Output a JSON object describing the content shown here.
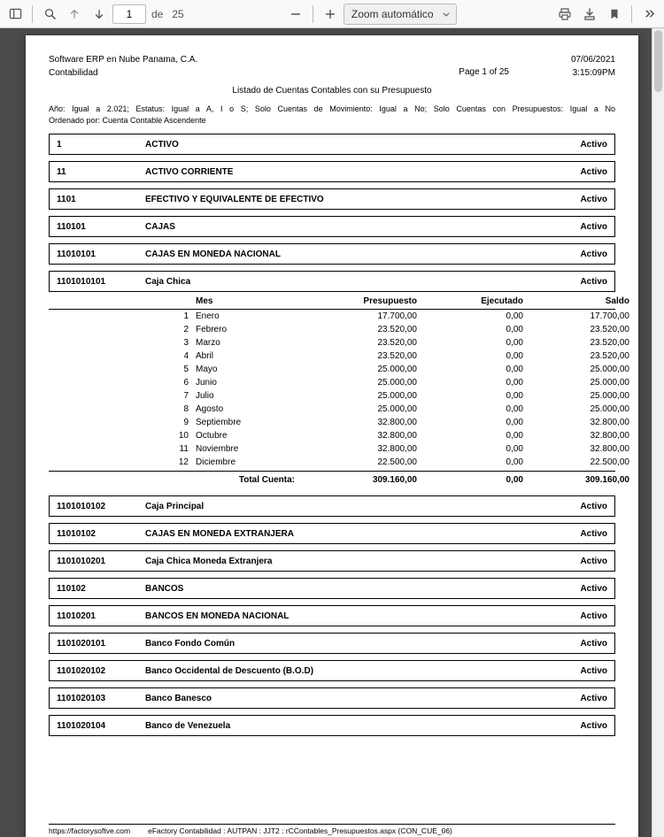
{
  "toolbar": {
    "page_current": "1",
    "page_sep": "de",
    "page_total": "25",
    "zoom_label": "Zoom automático"
  },
  "report": {
    "company": "Software ERP en Nube Panama, C.A.",
    "module": "Contabilidad",
    "date": "07/06/2021",
    "time": "3:15:09PM",
    "page_indicator": "Page 1 of 25",
    "title": "Listado de Cuentas Contables con su Presupuesto",
    "filters_line1": "Año: Igual a 2.021; Estatus: Igual a A, I o S; Solo Cuentas de Movimiento: Igual a No; Solo Cuentas con Presupuestos: Igual a No",
    "filters_line2": "Ordenado por: Cuenta Contable Ascendente",
    "status_label": "Activo",
    "columns": {
      "mes": "Mes",
      "presupuesto": "Presupuesto",
      "ejecutado": "Ejecutado",
      "saldo": "Saldo"
    },
    "total_label": "Total Cuenta:",
    "footer_url": "https://factorysoftve.com",
    "footer_info": "eFactory Contabilidad  :  AUTPAN  :  JJT2  :  rCContables_Presupuestos.aspx (CON_CUE_06)"
  },
  "accounts_top": [
    {
      "code": "1",
      "name": "ACTIVO"
    },
    {
      "code": "11",
      "name": "ACTIVO CORRIENTE"
    },
    {
      "code": "1101",
      "name": "EFECTIVO Y EQUIVALENTE DE EFECTIVO"
    },
    {
      "code": "110101",
      "name": "CAJAS"
    },
    {
      "code": "11010101",
      "name": "CAJAS EN MONEDA NACIONAL"
    },
    {
      "code": "1101010101",
      "name": "Caja Chica"
    }
  ],
  "budget_rows": [
    {
      "n": "1",
      "mes": "Enero",
      "p": "17.700,00",
      "e": "0,00",
      "s": "17.700,00"
    },
    {
      "n": "2",
      "mes": "Febrero",
      "p": "23.520,00",
      "e": "0,00",
      "s": "23.520,00"
    },
    {
      "n": "3",
      "mes": "Marzo",
      "p": "23.520,00",
      "e": "0,00",
      "s": "23.520,00"
    },
    {
      "n": "4",
      "mes": "Abril",
      "p": "23.520,00",
      "e": "0,00",
      "s": "23.520,00"
    },
    {
      "n": "5",
      "mes": "Mayo",
      "p": "25.000,00",
      "e": "0,00",
      "s": "25.000,00"
    },
    {
      "n": "6",
      "mes": "Junio",
      "p": "25.000,00",
      "e": "0,00",
      "s": "25.000,00"
    },
    {
      "n": "7",
      "mes": "Julio",
      "p": "25.000,00",
      "e": "0,00",
      "s": "25.000,00"
    },
    {
      "n": "8",
      "mes": "Agosto",
      "p": "25.000,00",
      "e": "0,00",
      "s": "25.000,00"
    },
    {
      "n": "9",
      "mes": "Septiembre",
      "p": "32.800,00",
      "e": "0,00",
      "s": "32.800,00"
    },
    {
      "n": "10",
      "mes": "Octubre",
      "p": "32.800,00",
      "e": "0,00",
      "s": "32.800,00"
    },
    {
      "n": "11",
      "mes": "Noviembre",
      "p": "32.800,00",
      "e": "0,00",
      "s": "32.800,00"
    },
    {
      "n": "12",
      "mes": "Diciembre",
      "p": "22.500,00",
      "e": "0,00",
      "s": "22.500,00"
    }
  ],
  "budget_total": {
    "p": "309.160,00",
    "e": "0,00",
    "s": "309.160,00"
  },
  "accounts_bottom": [
    {
      "code": "1101010102",
      "name": "Caja Principal"
    },
    {
      "code": "11010102",
      "name": "CAJAS EN MONEDA EXTRANJERA"
    },
    {
      "code": "1101010201",
      "name": "Caja Chica Moneda Extranjera"
    },
    {
      "code": "110102",
      "name": "BANCOS"
    },
    {
      "code": "11010201",
      "name": "BANCOS EN MONEDA NACIONAL"
    },
    {
      "code": "1101020101",
      "name": "Banco Fondo Común"
    },
    {
      "code": "1101020102",
      "name": "Banco Occidental de Descuento (B.O.D)"
    },
    {
      "code": "1101020103",
      "name": "Banco Banesco"
    },
    {
      "code": "1101020104",
      "name": "Banco de Venezuela"
    }
  ]
}
